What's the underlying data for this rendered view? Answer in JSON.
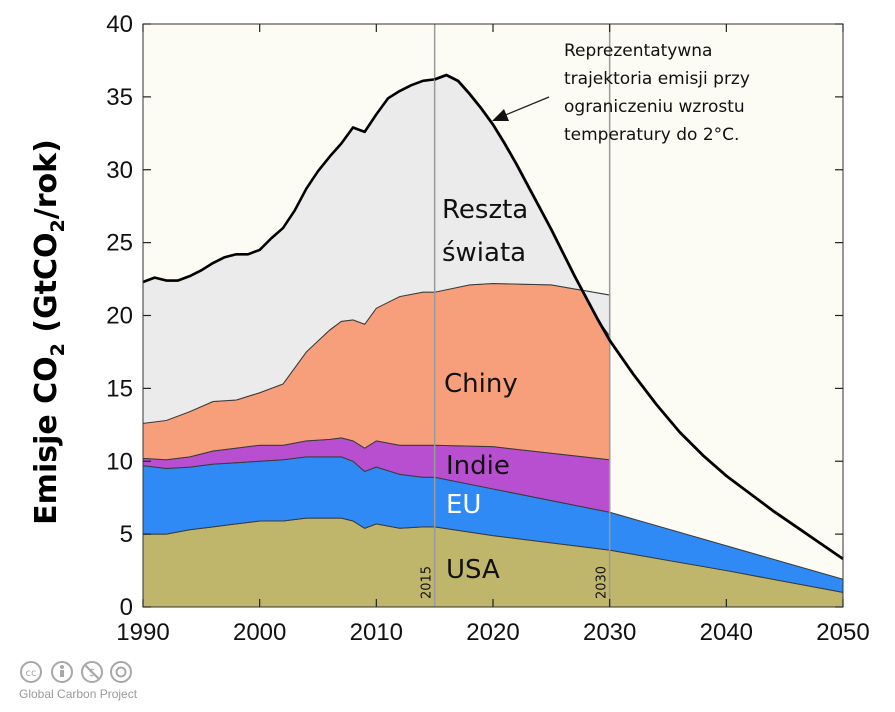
{
  "chart_data": {
    "type": "area",
    "ylabel": "Emisje CO2 (GtCO2/rok)",
    "ylabel_parts": {
      "pre": "Emisje CO",
      "sub1": "2",
      "mid": " (GtCO",
      "sub2": "2",
      "post": "/rok)"
    },
    "xlim": [
      1990,
      2050
    ],
    "ylim": [
      0,
      40
    ],
    "xticks": [
      1990,
      2000,
      2010,
      2020,
      2030,
      2040,
      2050
    ],
    "yticks": [
      0,
      5,
      10,
      15,
      20,
      25,
      30,
      35,
      40
    ],
    "reference_lines": [
      {
        "x": 2015,
        "label": "2015"
      },
      {
        "x": 2030,
        "label": "2030"
      }
    ],
    "stacked_areas": [
      {
        "name": "USA",
        "label": "USA",
        "color": "#bfb56b",
        "points": [
          [
            1990,
            5.0
          ],
          [
            1992,
            5.0
          ],
          [
            1994,
            5.3
          ],
          [
            1996,
            5.5
          ],
          [
            1998,
            5.7
          ],
          [
            2000,
            5.9
          ],
          [
            2002,
            5.9
          ],
          [
            2004,
            6.1
          ],
          [
            2006,
            6.1
          ],
          [
            2007,
            6.1
          ],
          [
            2008,
            5.9
          ],
          [
            2009,
            5.4
          ],
          [
            2010,
            5.7
          ],
          [
            2012,
            5.4
          ],
          [
            2014,
            5.5
          ],
          [
            2015,
            5.5
          ],
          [
            2020,
            4.9
          ],
          [
            2030,
            3.9
          ],
          [
            2040,
            2.5
          ],
          [
            2050,
            1.0
          ]
        ]
      },
      {
        "name": "EU",
        "label": "EU",
        "color": "#2f8af6",
        "points": [
          [
            1990,
            9.7
          ],
          [
            1992,
            9.5
          ],
          [
            1994,
            9.6
          ],
          [
            1996,
            9.8
          ],
          [
            1998,
            9.9
          ],
          [
            2000,
            10.0
          ],
          [
            2002,
            10.1
          ],
          [
            2004,
            10.3
          ],
          [
            2006,
            10.3
          ],
          [
            2007,
            10.3
          ],
          [
            2008,
            10.0
          ],
          [
            2009,
            9.3
          ],
          [
            2010,
            9.6
          ],
          [
            2012,
            9.1
          ],
          [
            2014,
            8.9
          ],
          [
            2015,
            8.9
          ],
          [
            2020,
            8.1
          ],
          [
            2030,
            6.5
          ],
          [
            2040,
            4.2
          ],
          [
            2050,
            1.9
          ]
        ]
      },
      {
        "name": "Indie",
        "label": "Indie",
        "color": "#b84fd1",
        "points": [
          [
            1990,
            10.2
          ],
          [
            1992,
            10.1
          ],
          [
            1994,
            10.3
          ],
          [
            1996,
            10.7
          ],
          [
            1998,
            10.9
          ],
          [
            2000,
            11.1
          ],
          [
            2002,
            11.1
          ],
          [
            2004,
            11.4
          ],
          [
            2006,
            11.5
          ],
          [
            2007,
            11.6
          ],
          [
            2008,
            11.4
          ],
          [
            2009,
            10.9
          ],
          [
            2010,
            11.4
          ],
          [
            2012,
            11.1
          ],
          [
            2014,
            11.1
          ],
          [
            2015,
            11.1
          ],
          [
            2020,
            11.0
          ],
          [
            2030,
            10.1
          ]
        ]
      },
      {
        "name": "Chiny",
        "label": "Chiny",
        "color": "#f79f7b",
        "points": [
          [
            1990,
            12.6
          ],
          [
            1992,
            12.8
          ],
          [
            1994,
            13.4
          ],
          [
            1996,
            14.1
          ],
          [
            1998,
            14.2
          ],
          [
            2000,
            14.7
          ],
          [
            2002,
            15.3
          ],
          [
            2004,
            17.5
          ],
          [
            2006,
            19.0
          ],
          [
            2007,
            19.6
          ],
          [
            2008,
            19.7
          ],
          [
            2009,
            19.4
          ],
          [
            2010,
            20.5
          ],
          [
            2012,
            21.3
          ],
          [
            2014,
            21.6
          ],
          [
            2015,
            21.6
          ],
          [
            2018,
            22.1
          ],
          [
            2020,
            22.2
          ],
          [
            2025,
            22.1
          ],
          [
            2030,
            21.4
          ]
        ]
      },
      {
        "name": "Reszta świata",
        "label_line1": "Reszta",
        "label_line2": "świata",
        "color": "#ebebeb",
        "points": [
          [
            1990,
            22.3
          ],
          [
            1991,
            22.6
          ],
          [
            1992,
            22.4
          ],
          [
            1993,
            22.4
          ],
          [
            1994,
            22.7
          ],
          [
            1995,
            23.1
          ],
          [
            1996,
            23.6
          ],
          [
            1997,
            24.0
          ],
          [
            1998,
            24.2
          ],
          [
            1999,
            24.2
          ],
          [
            2000,
            24.5
          ],
          [
            2001,
            25.3
          ],
          [
            2002,
            26.0
          ],
          [
            2003,
            27.2
          ],
          [
            2004,
            28.7
          ],
          [
            2005,
            29.9
          ],
          [
            2006,
            30.9
          ],
          [
            2007,
            31.8
          ],
          [
            2008,
            32.9
          ],
          [
            2009,
            32.6
          ],
          [
            2010,
            33.8
          ],
          [
            2011,
            34.9
          ],
          [
            2012,
            35.4
          ],
          [
            2013,
            35.8
          ],
          [
            2014,
            36.1
          ],
          [
            2015,
            36.2
          ],
          [
            2016,
            36.5
          ],
          [
            2017,
            36.1
          ],
          [
            2018,
            35.2
          ],
          [
            2019,
            34.2
          ],
          [
            2020,
            33.1
          ],
          [
            2021,
            31.8
          ],
          [
            2022,
            30.4
          ],
          [
            2023,
            28.9
          ],
          [
            2024,
            27.4
          ],
          [
            2025,
            25.9
          ],
          [
            2026,
            24.3
          ],
          [
            2027,
            22.7
          ],
          [
            2028,
            21.2
          ],
          [
            2029,
            19.7
          ],
          [
            2030,
            18.6
          ]
        ]
      }
    ],
    "trajectory": {
      "name": "Reprezentatywna trajektoria emisji przy ograniczeniu wzrostu temperatury do 2°C.",
      "annotation_lines": [
        "Reprezentatywna",
        "trajektoria emisji przy",
        "ograniczeniu wzrostu",
        "temperatury do 2°C."
      ],
      "color": "#000000",
      "points": [
        [
          2015,
          36.2
        ],
        [
          2016,
          36.5
        ],
        [
          2017,
          36.1
        ],
        [
          2018,
          35.2
        ],
        [
          2019,
          34.2
        ],
        [
          2020,
          33.1
        ],
        [
          2021,
          31.8
        ],
        [
          2022,
          30.4
        ],
        [
          2023,
          28.9
        ],
        [
          2024,
          27.4
        ],
        [
          2025,
          25.9
        ],
        [
          2026,
          24.3
        ],
        [
          2027,
          22.7
        ],
        [
          2028,
          21.2
        ],
        [
          2029,
          19.7
        ],
        [
          2030,
          18.3
        ],
        [
          2032,
          16.0
        ],
        [
          2034,
          13.9
        ],
        [
          2036,
          12.0
        ],
        [
          2038,
          10.4
        ],
        [
          2040,
          9.0
        ],
        [
          2042,
          7.8
        ],
        [
          2044,
          6.6
        ],
        [
          2046,
          5.5
        ],
        [
          2048,
          4.4
        ],
        [
          2050,
          3.3
        ]
      ]
    },
    "background_color": "#fcfbf4"
  },
  "credit": {
    "text": "Global Carbon Project",
    "license_icons": [
      "cc-icon",
      "by-icon",
      "nc-icon",
      "sa-icon"
    ]
  }
}
